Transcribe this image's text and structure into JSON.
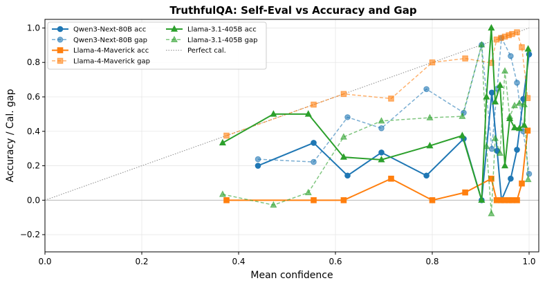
{
  "chart_data": {
    "type": "line",
    "title": "TruthfulQA: Self-Eval vs Accuracy and Gap",
    "xlabel": "Mean confidence",
    "ylabel": "Accuracy / Cal. gap",
    "xlim": [
      0.0,
      1.02
    ],
    "ylim": [
      -0.3,
      1.05
    ],
    "xticks": [
      0.0,
      0.2,
      0.4,
      0.6,
      0.8,
      1.0
    ],
    "xtick_labels": [
      "0.0",
      "0.2",
      "0.4",
      "0.6",
      "0.8",
      "1.0"
    ],
    "yticks": [
      -0.2,
      0.0,
      0.2,
      0.4,
      0.6,
      0.8,
      1.0
    ],
    "ytick_labels": [
      "−0.2",
      "0.0",
      "0.2",
      "0.4",
      "0.6",
      "0.8",
      "1.0"
    ],
    "grid": true,
    "legend_position": "top-left",
    "reference_lines": [
      {
        "name": "Perfect cal.",
        "x": [
          0.0,
          1.0
        ],
        "y": [
          0.0,
          1.0
        ],
        "color": "#888888",
        "style": "dotted"
      },
      {
        "name": "",
        "y": 0.0,
        "color": "#bbbbbb",
        "style": "solid"
      }
    ],
    "series": [
      {
        "name": "Qwen3-Next-80B acc",
        "color": "#1f77b4",
        "marker": "circle",
        "style": "solid",
        "x": [
          0.44,
          0.555,
          0.625,
          0.695,
          0.788,
          0.865,
          0.902,
          0.923,
          0.934,
          0.943,
          0.962,
          0.975,
          0.988,
          1.0
        ],
        "y": [
          0.2,
          0.333,
          0.143,
          0.277,
          0.143,
          0.357,
          0.0,
          0.625,
          0.287,
          0.0,
          0.125,
          0.293,
          0.588,
          0.847
        ]
      },
      {
        "name": "Qwen3-Next-80B gap",
        "color": "#1f77b4",
        "marker": "circle",
        "style": "dashed",
        "faded": true,
        "x": [
          0.44,
          0.555,
          0.625,
          0.695,
          0.788,
          0.865,
          0.902,
          0.923,
          0.934,
          0.943,
          0.962,
          0.975,
          0.988,
          1.0
        ],
        "y": [
          0.238,
          0.222,
          0.482,
          0.418,
          0.645,
          0.508,
          0.902,
          0.298,
          0.647,
          0.943,
          0.837,
          0.682,
          0.4,
          0.153
        ]
      },
      {
        "name": "Llama-4-Maverick acc",
        "color": "#ff7f0e",
        "marker": "square",
        "style": "solid",
        "x": [
          0.375,
          0.555,
          0.617,
          0.715,
          0.8,
          0.868,
          0.922,
          0.933,
          0.942,
          0.95,
          0.958,
          0.965,
          0.975,
          0.985,
          0.997
        ],
        "y": [
          0.0,
          0.0,
          0.0,
          0.125,
          0.0,
          0.045,
          0.125,
          0.0,
          0.0,
          0.0,
          0.0,
          0.0,
          0.0,
          0.097,
          0.404
        ]
      },
      {
        "name": "Llama-4-Maverick gap",
        "color": "#ff7f0e",
        "marker": "square",
        "style": "dashed",
        "faded": true,
        "x": [
          0.375,
          0.555,
          0.617,
          0.715,
          0.8,
          0.868,
          0.922,
          0.933,
          0.942,
          0.95,
          0.958,
          0.965,
          0.975,
          0.985,
          0.997
        ],
        "y": [
          0.375,
          0.555,
          0.617,
          0.59,
          0.8,
          0.823,
          0.797,
          0.933,
          0.942,
          0.95,
          0.958,
          0.965,
          0.975,
          0.888,
          0.593
        ]
      },
      {
        "name": "Llama-3.1-405B acc",
        "color": "#2ca02c",
        "marker": "triangle",
        "style": "solid",
        "x": [
          0.367,
          0.472,
          0.544,
          0.617,
          0.695,
          0.795,
          0.862,
          0.902,
          0.912,
          0.922,
          0.93,
          0.94,
          0.95,
          0.96,
          0.97,
          0.98,
          0.99,
          0.998
        ],
        "y": [
          0.333,
          0.5,
          0.5,
          0.25,
          0.235,
          0.316,
          0.375,
          0.0,
          0.6,
          1.0,
          0.571,
          0.667,
          0.2,
          0.474,
          0.421,
          0.417,
          0.435,
          0.878
        ]
      },
      {
        "name": "Llama-3.1-405B gap",
        "color": "#2ca02c",
        "marker": "triangle",
        "style": "dashed",
        "faded": true,
        "x": [
          0.367,
          0.472,
          0.544,
          0.617,
          0.695,
          0.795,
          0.862,
          0.902,
          0.912,
          0.922,
          0.93,
          0.94,
          0.95,
          0.96,
          0.97,
          0.98,
          0.99,
          0.998
        ],
        "y": [
          0.034,
          -0.028,
          0.044,
          0.367,
          0.46,
          0.479,
          0.487,
          0.902,
          0.312,
          -0.078,
          0.359,
          0.273,
          0.75,
          0.486,
          0.549,
          0.563,
          0.555,
          0.12
        ]
      }
    ]
  }
}
